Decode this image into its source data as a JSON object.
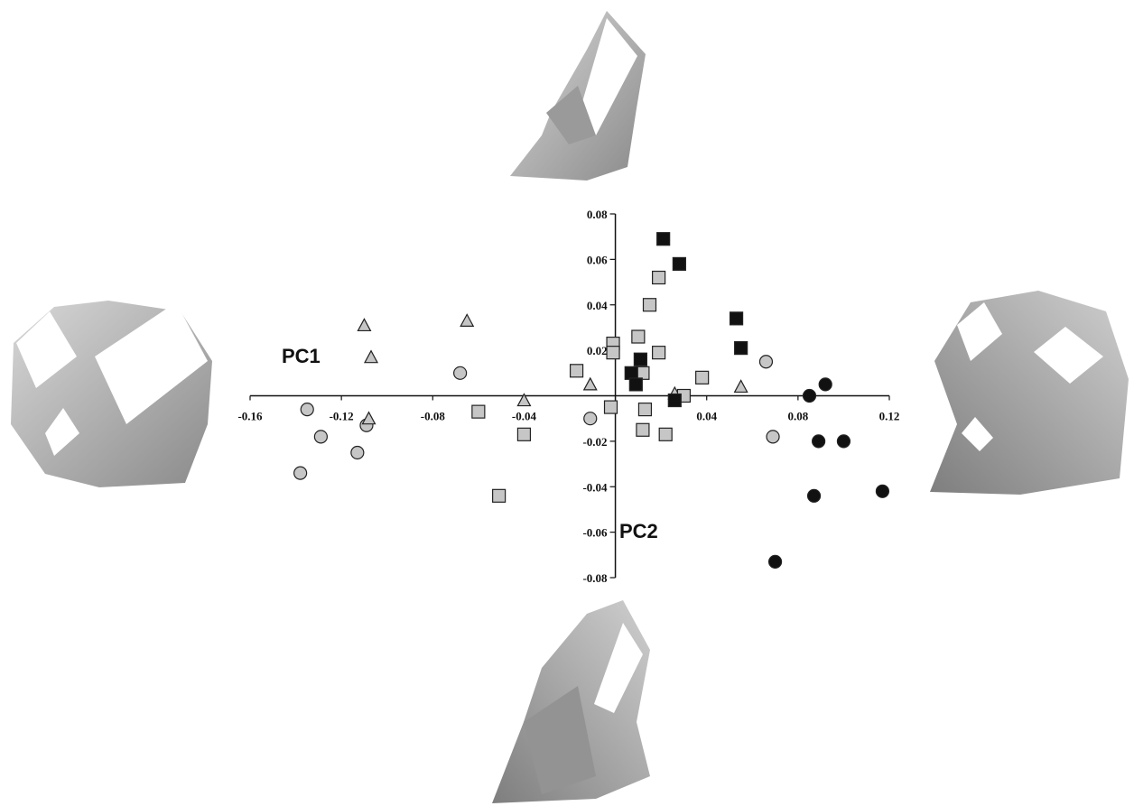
{
  "chart_data": {
    "type": "scatter",
    "xlabel": "PC1",
    "ylabel": "PC2",
    "xlim": [
      -0.16,
      0.12
    ],
    "ylim": [
      -0.08,
      0.08
    ],
    "xticks": [
      -0.16,
      -0.12,
      -0.08,
      -0.04,
      0.04,
      0.08,
      0.12
    ],
    "yticks": [
      -0.08,
      -0.06,
      -0.04,
      -0.02,
      0.02,
      0.04,
      0.06,
      0.08
    ],
    "series": [
      {
        "marker": "circle",
        "color": "#c6c6c6",
        "x": [
          -0.135,
          -0.129,
          -0.138,
          -0.113,
          -0.109,
          -0.068,
          -0.011,
          0.066,
          0.069
        ],
        "values": [
          -0.006,
          -0.018,
          -0.034,
          -0.025,
          -0.013,
          0.01,
          -0.01,
          0.015,
          -0.018
        ]
      },
      {
        "marker": "triangle",
        "color": "#c6c6c6",
        "x": [
          -0.11,
          -0.107,
          -0.108,
          -0.065,
          -0.04,
          -0.011,
          0.055,
          0.026
        ],
        "values": [
          0.031,
          0.017,
          -0.01,
          0.033,
          -0.002,
          0.005,
          0.004,
          0.001
        ]
      },
      {
        "marker": "square",
        "color": "#c6c6c6",
        "x": [
          -0.06,
          -0.051,
          -0.04,
          -0.017,
          -0.002,
          -0.001,
          -0.001,
          0.01,
          0.012,
          0.013,
          0.012,
          0.015,
          0.019,
          0.022,
          0.019,
          0.03,
          0.038
        ],
        "values": [
          -0.007,
          -0.044,
          -0.017,
          0.011,
          -0.005,
          0.023,
          0.019,
          0.026,
          0.01,
          -0.006,
          -0.015,
          0.04,
          0.052,
          -0.017,
          0.019,
          0.0,
          0.008
        ]
      },
      {
        "marker": "square",
        "color": "#111111",
        "x": [
          0.021,
          0.028,
          0.053,
          0.055,
          0.011,
          0.007,
          0.009,
          0.026
        ],
        "values": [
          0.069,
          0.058,
          0.034,
          0.021,
          0.016,
          0.01,
          0.005,
          -0.002
        ]
      },
      {
        "marker": "circle",
        "color": "#111111",
        "x": [
          0.085,
          0.092,
          0.089,
          0.1,
          0.087,
          0.117,
          0.07
        ],
        "values": [
          0.0,
          0.005,
          -0.02,
          -0.02,
          -0.044,
          -0.042,
          -0.073
        ]
      }
    ]
  }
}
